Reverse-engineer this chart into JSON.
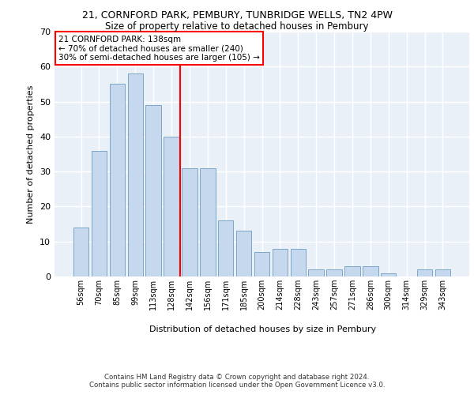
{
  "title1": "21, CORNFORD PARK, PEMBURY, TUNBRIDGE WELLS, TN2 4PW",
  "title2": "Size of property relative to detached houses in Pembury",
  "xlabel": "Distribution of detached houses by size in Pembury",
  "ylabel": "Number of detached properties",
  "categories": [
    "56sqm",
    "70sqm",
    "85sqm",
    "99sqm",
    "113sqm",
    "128sqm",
    "142sqm",
    "156sqm",
    "171sqm",
    "185sqm",
    "200sqm",
    "214sqm",
    "228sqm",
    "243sqm",
    "257sqm",
    "271sqm",
    "286sqm",
    "300sqm",
    "314sqm",
    "329sqm",
    "343sqm"
  ],
  "values": [
    14,
    36,
    55,
    58,
    49,
    40,
    31,
    31,
    16,
    13,
    7,
    8,
    8,
    2,
    2,
    3,
    3,
    1,
    0,
    2,
    2
  ],
  "bar_color": "#c5d8ed",
  "bar_edge_color": "#7ba7c9",
  "annotation_line1": "21 CORNFORD PARK: 138sqm",
  "annotation_line2": "← 70% of detached houses are smaller (240)",
  "annotation_line3": "30% of semi-detached houses are larger (105) →",
  "vline_color": "red",
  "vline_x": 5.5,
  "ylim": [
    0,
    70
  ],
  "yticks": [
    0,
    10,
    20,
    30,
    40,
    50,
    60,
    70
  ],
  "background_color": "#eaf0f8",
  "grid_color": "#ffffff",
  "footer1": "Contains HM Land Registry data © Crown copyright and database right 2024.",
  "footer2": "Contains public sector information licensed under the Open Government Licence v3.0."
}
